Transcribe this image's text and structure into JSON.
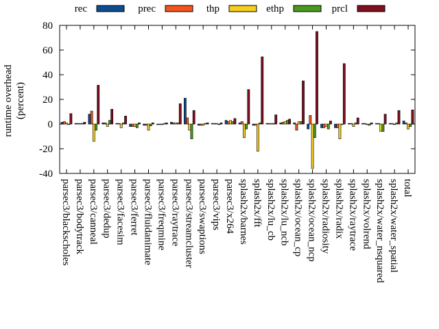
{
  "chart_data": {
    "type": "bar",
    "title": "",
    "xlabel": "",
    "ylabel": [
      "runtime overhead",
      "(percent)"
    ],
    "ylim": [
      -40,
      80
    ],
    "yticks": [
      -40,
      -20,
      0,
      20,
      40,
      60,
      80
    ],
    "legend_position": "top",
    "grid": false,
    "categories": [
      "parsec3/blackscholes",
      "parsec3/bodytrack",
      "parsec3/canneal",
      "parsec3/dedup",
      "parsec3/facesim",
      "parsec3/ferret",
      "parsec3/fluidanimate",
      "parsec3/freqmine",
      "parsec3/raytrace",
      "parsec3/streamcluster",
      "parsec3/swaptions",
      "parsec3/vips",
      "parsec3/x264",
      "splash2x/barnes",
      "splash2x/fft",
      "splash2x/lu_cb",
      "splash2x/lu_ncb",
      "splash2x/ocean_cp",
      "splash2x/ocean_ncp",
      "splash2x/radiosity",
      "splash2x/radix",
      "splash2x/raytrace",
      "splash2x/volrend",
      "splash2x/water_nsquared",
      "splash2x/water_spatial",
      "total"
    ],
    "series": [
      {
        "name": "rec",
        "color": "#0b4e8f",
        "values": [
          1.5,
          0.5,
          8,
          1,
          0.5,
          -2,
          -1,
          -0.5,
          1.5,
          21,
          -1,
          0.5,
          3,
          1,
          -1,
          0.5,
          1,
          1,
          -4,
          -3,
          -3,
          0.5,
          0.5,
          0.5,
          0.5,
          2.5
        ]
      },
      {
        "name": "prec",
        "color": "#f2541d",
        "values": [
          2,
          0.5,
          10.5,
          1,
          0.5,
          -2,
          -1,
          -0.5,
          1,
          5,
          -1,
          0.5,
          2,
          2,
          -1,
          0.5,
          1.5,
          -5,
          7,
          -3,
          -3,
          0.5,
          0.5,
          0.5,
          0.5,
          1
        ]
      },
      {
        "name": "thp",
        "color": "#f6cd20",
        "values": [
          1,
          0.5,
          -14,
          -2,
          -3,
          -2,
          -5,
          -0.5,
          1,
          -5,
          -1,
          0.5,
          3,
          -11,
          -22,
          0.5,
          2,
          2,
          -36,
          -2,
          -12,
          -2,
          -0.5,
          -6,
          -0.5,
          -4
        ]
      },
      {
        "name": "ethp",
        "color": "#4a9a1e",
        "values": [
          -0.5,
          0.5,
          -5,
          3,
          1,
          -3,
          -1.5,
          0.5,
          1,
          -12,
          0.5,
          -0.5,
          2,
          -4,
          1,
          0.5,
          3,
          2,
          -11,
          -4,
          -0.5,
          1,
          -1,
          -6,
          1,
          -2
        ]
      },
      {
        "name": "prcl",
        "color": "#800f1f",
        "values": [
          8.5,
          1.5,
          31.5,
          12,
          6.5,
          1,
          1,
          1,
          16.5,
          11,
          1,
          1,
          4.5,
          28,
          54.5,
          7.5,
          4,
          35,
          75,
          2.5,
          49,
          5,
          1,
          8,
          11,
          11.5
        ]
      }
    ]
  }
}
